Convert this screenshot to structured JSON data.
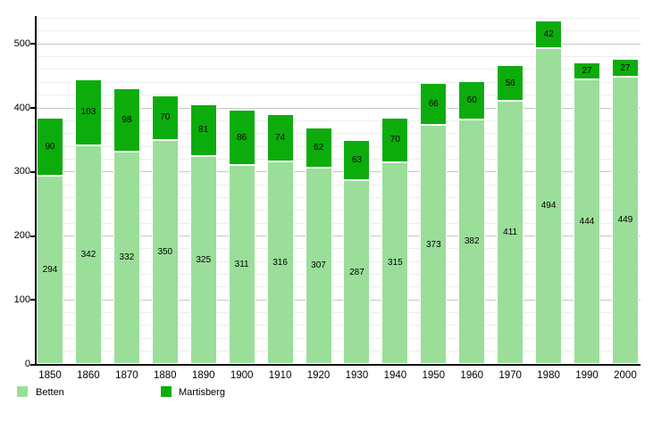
{
  "chart_data": {
    "type": "bar",
    "stacked": true,
    "title": "",
    "xlabel": "",
    "ylabel": "",
    "categories": [
      "1850",
      "1860",
      "1870",
      "1880",
      "1890",
      "1900",
      "1910",
      "1920",
      "1930",
      "1940",
      "1950",
      "1960",
      "1970",
      "1980",
      "1990",
      "2000"
    ],
    "series": [
      {
        "name": "Betten",
        "color": "#9ade9a",
        "values": [
          294,
          342,
          332,
          350,
          325,
          311,
          316,
          307,
          287,
          315,
          373,
          382,
          411,
          494,
          444,
          449
        ]
      },
      {
        "name": "Martisberg",
        "color": "#0dac0d",
        "values": [
          90,
          103,
          98,
          70,
          81,
          86,
          74,
          62,
          63,
          70,
          66,
          60,
          56,
          42,
          27,
          27
        ]
      }
    ],
    "value_labels": true,
    "ylim": [
      0,
      540
    ],
    "yticks": [
      0,
      100,
      200,
      300,
      400,
      500
    ],
    "grid": {
      "minor_step": 20,
      "major_step": 100,
      "minor_color": "#ececec",
      "major_color": "#c6c6c6"
    },
    "axis_color": "#000000",
    "legend_position": "bottom-left"
  }
}
